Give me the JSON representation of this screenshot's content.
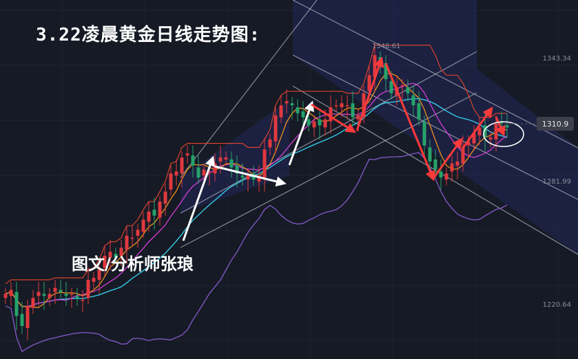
{
  "title": "3.22凌晨黄金日线走势图:",
  "credit": "图文/分析师张琅",
  "colors": {
    "background": "#161a25",
    "up": "#e0393e",
    "down": "#26a26a",
    "channel_fill": "#23285a",
    "channel_line": "#b7bcc8",
    "bollinger": "#7e57c2",
    "ma_cyan": "#35c9e6",
    "ma_orange": "#f0901e",
    "ma_magenta": "#d63fd6",
    "upper_band": "#d8432c",
    "arrow_red": "#ff3a3a",
    "arrow_white": "#ffffff"
  },
  "chart_data": {
    "type": "candlestick",
    "ylim": [
      1205,
      1360
    ],
    "y_ticks": [
      {
        "label": "1343.34",
        "value": 1343.34
      },
      {
        "label": "1281.99",
        "value": 1281.99
      },
      {
        "label": "1220.64",
        "value": 1220.64
      }
    ],
    "peak_label": {
      "label": "1346.61",
      "value": 1346.61
    },
    "last_price": {
      "label": "1310.9",
      "value": 1310.9
    },
    "closes": [
      1226,
      1228,
      1215,
      1210,
      1220,
      1224,
      1227,
      1225,
      1226,
      1229,
      1227,
      1225,
      1226,
      1224,
      1223,
      1233,
      1234,
      1238,
      1245,
      1247,
      1244,
      1249,
      1255,
      1254,
      1258,
      1263,
      1267,
      1265,
      1272,
      1277,
      1286,
      1287,
      1294,
      1296,
      1290,
      1284,
      1288,
      1287,
      1291,
      1294,
      1294,
      1289,
      1286,
      1284,
      1285,
      1283,
      1285,
      1298,
      1303,
      1315,
      1320,
      1322,
      1320,
      1316,
      1314,
      1310,
      1312,
      1310,
      1313,
      1319,
      1320,
      1321,
      1320,
      1314,
      1315,
      1326,
      1335,
      1345,
      1340,
      1333,
      1326,
      1329,
      1330,
      1326,
      1320,
      1313,
      1300,
      1292,
      1288,
      1284,
      1286,
      1291,
      1292,
      1299,
      1302,
      1306,
      1309,
      1304,
      1304,
      1311,
      1311,
      1309
    ]
  }
}
